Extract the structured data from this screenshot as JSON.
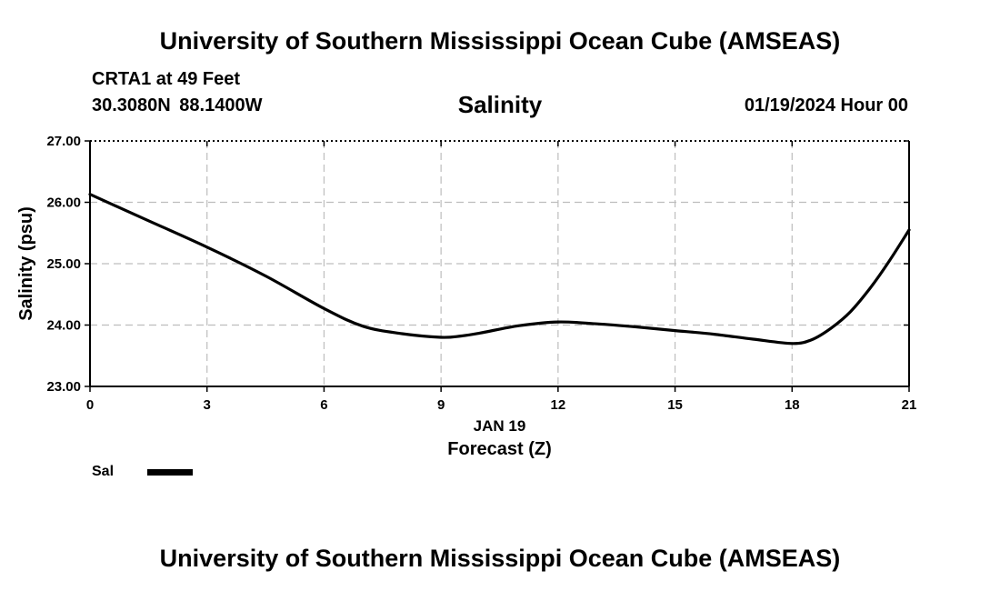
{
  "header": {
    "title": "University of Southern Mississippi Ocean Cube (AMSEAS)",
    "station": "CRTA1 at 49 Feet",
    "coordinates": "30.3080N  88.1400W",
    "date": "01/19/2024 Hour 00"
  },
  "footer": {
    "title": "University of Southern Mississippi Ocean Cube (AMSEAS)"
  },
  "chart_data": {
    "type": "line",
    "title": "Salinity",
    "xlabel": "Forecast (Z)",
    "xlabel_date": "JAN 19",
    "ylabel": "Salinity (psu)",
    "xlim": [
      0,
      21
    ],
    "ylim": [
      23,
      27
    ],
    "xticks": [
      0,
      3,
      6,
      9,
      12,
      15,
      18,
      21
    ],
    "xtick_labels": [
      "0",
      "3",
      "6",
      "9",
      "12",
      "15",
      "18",
      "21"
    ],
    "yticks": [
      23,
      24,
      25,
      26,
      27
    ],
    "ytick_labels": [
      "23.00",
      "24.00",
      "25.00",
      "26.00",
      "27.00"
    ],
    "grid": true,
    "legend_position": "bottom-left",
    "series": [
      {
        "name": "Sal",
        "color": "#000000",
        "x": [
          0,
          1.5,
          3,
          4.5,
          6,
          7,
          8,
          9,
          9.5,
          10,
          11,
          12,
          13,
          14,
          15,
          16,
          17,
          18,
          18.5,
          19,
          19.5,
          20,
          20.5,
          21
        ],
        "y": [
          26.13,
          25.7,
          25.27,
          24.8,
          24.27,
          23.98,
          23.86,
          23.8,
          23.82,
          23.87,
          23.99,
          24.05,
          24.02,
          23.97,
          23.91,
          23.85,
          23.77,
          23.7,
          23.76,
          23.95,
          24.22,
          24.6,
          25.05,
          25.55
        ]
      }
    ]
  }
}
